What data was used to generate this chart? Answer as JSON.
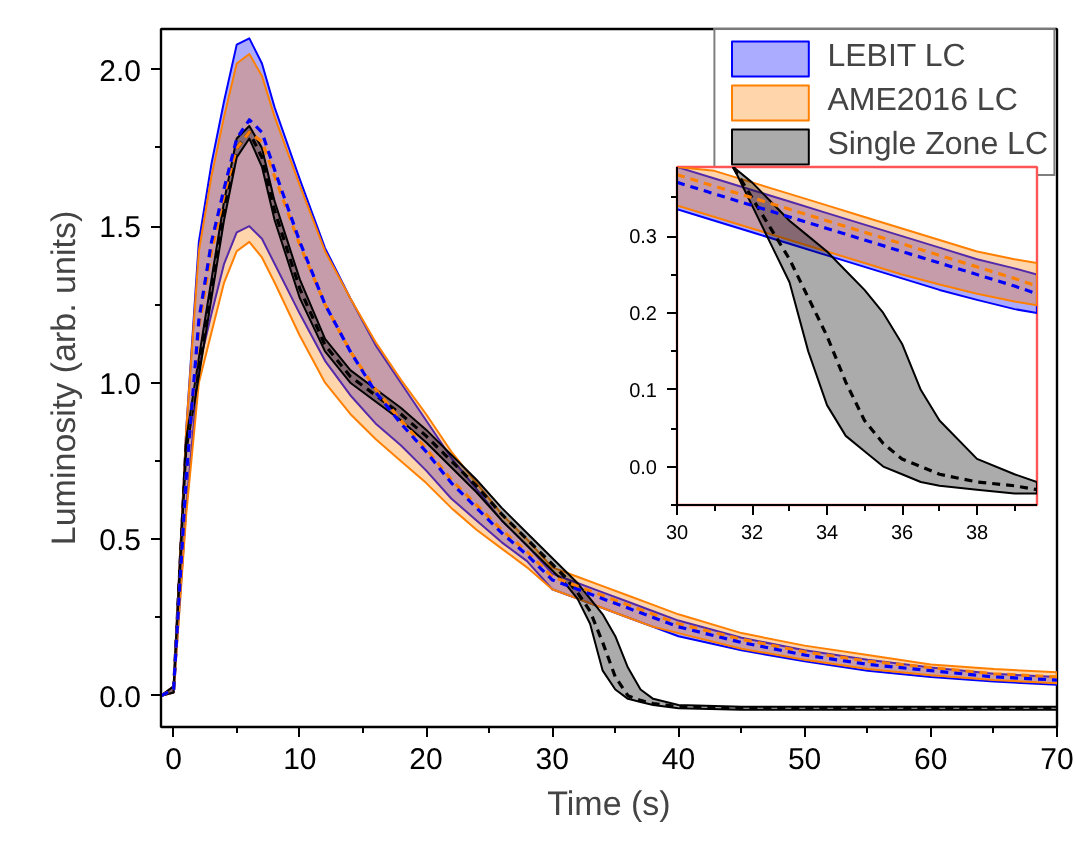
{
  "chart_data": [
    {
      "type": "line",
      "xlabel": "Time (s)",
      "ylabel": "Luminosity (arb. units)",
      "xlim": [
        -1,
        70
      ],
      "ylim": [
        -0.1,
        2.13
      ],
      "xticks": [
        0,
        10,
        20,
        30,
        40,
        50,
        60,
        70
      ],
      "yticks": [
        {
          "value": 0,
          "label": "0.0"
        },
        {
          "value": 0.5,
          "label": "0.5"
        },
        {
          "value": 1,
          "label": "1.0"
        },
        {
          "value": 1.5,
          "label": "1.5"
        },
        {
          "value": 2,
          "label": "2.0"
        }
      ],
      "legend": "top right",
      "line_style": "dashed",
      "x": [
        -1,
        0,
        1,
        2,
        3,
        4,
        5,
        6,
        7,
        8,
        10,
        12,
        14,
        16,
        18,
        20,
        22,
        24,
        26,
        28,
        30,
        32,
        34,
        36,
        38,
        40,
        45,
        50,
        55,
        60,
        65,
        70
      ],
      "series": [
        {
          "name": "LEBIT LC",
          "color": "#0000ff",
          "values": [
            0,
            0.02,
            0.7,
            1.2,
            1.45,
            1.62,
            1.78,
            1.84,
            1.8,
            1.68,
            1.45,
            1.25,
            1.1,
            0.97,
            0.87,
            0.78,
            0.68,
            0.6,
            0.52,
            0.45,
            0.37,
            0.34,
            0.31,
            0.28,
            0.25,
            0.22,
            0.17,
            0.13,
            0.1,
            0.08,
            0.06,
            0.05
          ],
          "upper": [
            0,
            0.03,
            0.85,
            1.45,
            1.7,
            1.9,
            2.08,
            2.1,
            2.02,
            1.88,
            1.65,
            1.43,
            1.27,
            1.12,
            1.0,
            0.88,
            0.76,
            0.66,
            0.56,
            0.48,
            0.39,
            0.36,
            0.33,
            0.3,
            0.27,
            0.24,
            0.185,
            0.145,
            0.115,
            0.09,
            0.07,
            0.06
          ],
          "lower": [
            0,
            0.01,
            0.6,
            1.05,
            1.22,
            1.38,
            1.48,
            1.5,
            1.46,
            1.38,
            1.22,
            1.07,
            0.96,
            0.87,
            0.8,
            0.72,
            0.63,
            0.56,
            0.49,
            0.43,
            0.34,
            0.31,
            0.28,
            0.25,
            0.22,
            0.19,
            0.145,
            0.11,
            0.08,
            0.06,
            0.045,
            0.035
          ]
        },
        {
          "name": "AME2016 LC",
          "color": "#ff8000",
          "values": [
            0,
            0.02,
            0.7,
            1.18,
            1.42,
            1.6,
            1.75,
            1.8,
            1.77,
            1.66,
            1.44,
            1.25,
            1.1,
            0.98,
            0.88,
            0.79,
            0.69,
            0.61,
            0.53,
            0.46,
            0.38,
            0.35,
            0.32,
            0.29,
            0.26,
            0.23,
            0.18,
            0.14,
            0.11,
            0.09,
            0.07,
            0.06
          ],
          "upper": [
            0,
            0.03,
            0.85,
            1.42,
            1.66,
            1.85,
            2.02,
            2.05,
            1.98,
            1.85,
            1.63,
            1.42,
            1.27,
            1.13,
            1.01,
            0.9,
            0.78,
            0.68,
            0.58,
            0.5,
            0.41,
            0.38,
            0.35,
            0.32,
            0.29,
            0.26,
            0.2,
            0.16,
            0.13,
            0.1,
            0.085,
            0.075
          ],
          "lower": [
            0,
            0.01,
            0.58,
            1.0,
            1.16,
            1.32,
            1.42,
            1.45,
            1.4,
            1.32,
            1.15,
            1.0,
            0.9,
            0.82,
            0.75,
            0.68,
            0.6,
            0.53,
            0.47,
            0.41,
            0.34,
            0.31,
            0.28,
            0.25,
            0.22,
            0.2,
            0.15,
            0.115,
            0.085,
            0.065,
            0.05,
            0.04
          ]
        },
        {
          "name": "Single Zone LC",
          "color": "#000000",
          "x": [
            -1,
            0,
            1,
            2,
            3,
            4,
            5,
            6,
            7,
            8,
            10,
            12,
            14,
            16,
            18,
            20,
            22,
            24,
            26,
            28,
            30,
            31,
            32,
            33,
            34,
            35,
            36,
            37,
            38,
            40,
            45,
            50,
            60,
            70
          ],
          "values": [
            0,
            0.02,
            0.8,
            1.05,
            1.3,
            1.55,
            1.75,
            1.8,
            1.72,
            1.55,
            1.3,
            1.12,
            1.02,
            0.96,
            0.9,
            0.83,
            0.75,
            0.67,
            0.58,
            0.5,
            0.42,
            0.38,
            0.33,
            0.27,
            0.17,
            0.06,
            0.0,
            -0.015,
            -0.025,
            -0.035,
            -0.04,
            -0.04,
            -0.04,
            -0.04
          ],
          "upper": [
            0,
            0.03,
            0.82,
            1.08,
            1.33,
            1.58,
            1.78,
            1.82,
            1.75,
            1.58,
            1.33,
            1.14,
            1.04,
            0.98,
            0.92,
            0.85,
            0.77,
            0.69,
            0.6,
            0.52,
            0.44,
            0.4,
            0.36,
            0.31,
            0.26,
            0.19,
            0.09,
            0.02,
            -0.01,
            -0.03,
            -0.035,
            -0.035,
            -0.035,
            -0.035
          ],
          "lower": [
            0,
            0.01,
            0.78,
            1.02,
            1.27,
            1.52,
            1.72,
            1.78,
            1.69,
            1.52,
            1.27,
            1.1,
            1.0,
            0.94,
            0.88,
            0.81,
            0.73,
            0.65,
            0.56,
            0.48,
            0.4,
            0.36,
            0.31,
            0.23,
            0.08,
            0.02,
            -0.01,
            -0.02,
            -0.03,
            -0.04,
            -0.045,
            -0.045,
            -0.045,
            -0.045
          ]
        }
      ]
    },
    {
      "type": "line",
      "xlim": [
        30,
        39.6
      ],
      "ylim": [
        -0.05,
        0.39
      ],
      "xticks": [
        30,
        32,
        34,
        36,
        38
      ],
      "yticks": [
        {
          "value": 0,
          "label": "0.0"
        },
        {
          "value": 0.1,
          "label": "0.1"
        },
        {
          "value": 0.2,
          "label": "0.2"
        },
        {
          "value": 0.3,
          "label": "0.3"
        }
      ],
      "line_style": "dashed",
      "x": [
        30,
        31,
        32,
        33,
        34,
        35,
        36,
        37,
        38,
        39,
        39.6
      ],
      "series": [
        {
          "color": "#0000ff",
          "values": [
            0.37,
            0.355,
            0.34,
            0.325,
            0.31,
            0.295,
            0.28,
            0.265,
            0.25,
            0.235,
            0.225
          ],
          "upper": [
            0.39,
            0.375,
            0.36,
            0.345,
            0.33,
            0.315,
            0.3,
            0.285,
            0.27,
            0.258,
            0.25
          ],
          "lower": [
            0.335,
            0.32,
            0.305,
            0.29,
            0.275,
            0.26,
            0.245,
            0.23,
            0.217,
            0.205,
            0.2
          ]
        },
        {
          "color": "#ff8000",
          "values": [
            0.38,
            0.365,
            0.35,
            0.335,
            0.32,
            0.305,
            0.29,
            0.275,
            0.26,
            0.245,
            0.235
          ],
          "upper": [
            0.39,
            0.385,
            0.37,
            0.355,
            0.34,
            0.325,
            0.31,
            0.295,
            0.28,
            0.27,
            0.265
          ],
          "lower": [
            0.34,
            0.325,
            0.31,
            0.295,
            0.28,
            0.265,
            0.25,
            0.237,
            0.225,
            0.215,
            0.21
          ]
        },
        {
          "color": "#000000",
          "x": [
            31.5,
            32,
            32.5,
            33,
            33.5,
            34,
            34.5,
            35,
            35.5,
            36,
            36.5,
            37,
            38,
            39,
            39.6
          ],
          "values": [
            0.39,
            0.35,
            0.31,
            0.27,
            0.22,
            0.17,
            0.11,
            0.06,
            0.03,
            0.01,
            0.0,
            -0.01,
            -0.02,
            -0.025,
            -0.03
          ],
          "upper": [
            0.39,
            0.37,
            0.345,
            0.32,
            0.3,
            0.28,
            0.255,
            0.23,
            0.2,
            0.16,
            0.1,
            0.06,
            0.01,
            -0.01,
            -0.02
          ],
          "lower": [
            0.39,
            0.34,
            0.29,
            0.24,
            0.15,
            0.08,
            0.04,
            0.02,
            0.0,
            -0.01,
            -0.02,
            -0.025,
            -0.03,
            -0.035,
            -0.035
          ]
        }
      ]
    }
  ]
}
